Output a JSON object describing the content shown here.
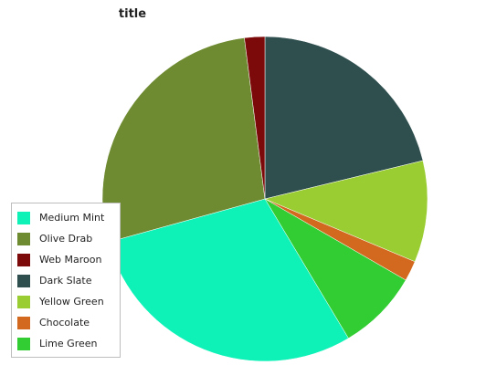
{
  "chart_data": {
    "type": "pie",
    "title": "title",
    "legend_position": "left",
    "slices": [
      {
        "label": "Medium Mint",
        "value": 29,
        "color": "#0ef1b7"
      },
      {
        "label": "Olive Drab",
        "value": 27,
        "color": "#6e8b32"
      },
      {
        "label": "Web Maroon",
        "value": 2,
        "color": "#7d0a0a"
      },
      {
        "label": "Dark Slate",
        "value": 21,
        "color": "#2f4f4f"
      },
      {
        "label": "Yellow Green",
        "value": 10,
        "color": "#9acd32"
      },
      {
        "label": "Chocolate",
        "value": 2,
        "color": "#d2691e"
      },
      {
        "label": "Lime Green",
        "value": 8,
        "color": "#32cd32"
      }
    ],
    "draw_order": [
      "Dark Slate",
      "Yellow Green",
      "Chocolate",
      "Lime Green",
      "Medium Mint",
      "Olive Drab",
      "Web Maroon"
    ]
  }
}
